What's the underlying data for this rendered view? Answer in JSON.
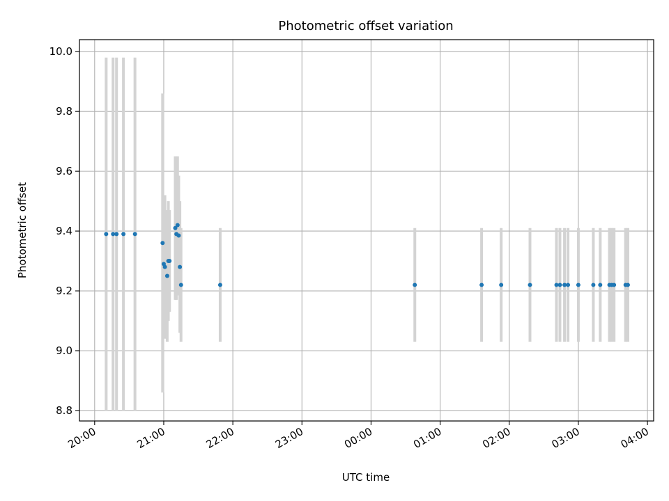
{
  "chart_data": {
    "type": "scatter",
    "title": "Photometric offset variation",
    "xlabel": "UTC time",
    "ylabel": "Photometric offset",
    "x_ticks": [
      "20:00",
      "21:00",
      "22:00",
      "23:00",
      "00:00",
      "01:00",
      "02:00",
      "03:00",
      "04:00"
    ],
    "y_ticks": [
      "8.8",
      "9.0",
      "9.2",
      "9.4",
      "9.6",
      "9.8",
      "10.0"
    ],
    "xlim_hours": [
      19.78,
      28.09
    ],
    "ylim": [
      8.765,
      10.04
    ],
    "grid": true,
    "colors": {
      "points": "#1f77b4",
      "error_bars": "#d3d3d3",
      "grid": "#b0b0b0"
    },
    "series": [
      {
        "points": [
          {
            "x": "20:10",
            "y": 9.39,
            "err": 0.59
          },
          {
            "x": "20:16",
            "y": 9.39,
            "err": 0.59
          },
          {
            "x": "20:19",
            "y": 9.39,
            "err": 0.59
          },
          {
            "x": "20:25",
            "y": 9.39,
            "err": 0.59
          },
          {
            "x": "20:35",
            "y": 9.39,
            "err": 0.59
          },
          {
            "x": "20:59",
            "y": 9.36,
            "err": 0.5
          },
          {
            "x": "21:00",
            "y": 9.29,
            "err": 0.23
          },
          {
            "x": "21:01",
            "y": 9.28,
            "err": 0.24
          },
          {
            "x": "21:03",
            "y": 9.25,
            "err": 0.22
          },
          {
            "x": "21:04",
            "y": 9.3,
            "err": 0.2
          },
          {
            "x": "21:05",
            "y": 9.3,
            "err": 0.17
          },
          {
            "x": "21:10",
            "y": 9.41,
            "err": 0.24
          },
          {
            "x": "21:11",
            "y": 9.39,
            "err": 0.22
          },
          {
            "x": "21:12",
            "y": 9.42,
            "err": 0.23
          },
          {
            "x": "21:13",
            "y": 9.385,
            "err": 0.2
          },
          {
            "x": "21:14",
            "y": 9.28,
            "err": 0.22
          },
          {
            "x": "21:15",
            "y": 9.22,
            "err": 0.19
          },
          {
            "x": "21:49",
            "y": 9.22,
            "err": 0.19
          },
          {
            "x": "00:38",
            "y": 9.22,
            "err": 0.19
          },
          {
            "x": "01:36",
            "y": 9.22,
            "err": 0.19
          },
          {
            "x": "01:53",
            "y": 9.22,
            "err": 0.19
          },
          {
            "x": "02:18",
            "y": 9.22,
            "err": 0.19
          },
          {
            "x": "02:41",
            "y": 9.22,
            "err": 0.19
          },
          {
            "x": "02:44",
            "y": 9.22,
            "err": 0.19
          },
          {
            "x": "02:48",
            "y": 9.22,
            "err": 0.19
          },
          {
            "x": "02:51",
            "y": 9.22,
            "err": 0.19
          },
          {
            "x": "03:00",
            "y": 9.22,
            "err": 0.19
          },
          {
            "x": "03:13",
            "y": 9.22,
            "err": 0.19
          },
          {
            "x": "03:19",
            "y": 9.22,
            "err": 0.19
          },
          {
            "x": "03:27",
            "y": 9.22,
            "err": 0.19
          },
          {
            "x": "03:29",
            "y": 9.22,
            "err": 0.19
          },
          {
            "x": "03:31",
            "y": 9.22,
            "err": 0.19
          },
          {
            "x": "03:41",
            "y": 9.22,
            "err": 0.19
          },
          {
            "x": "03:43",
            "y": 9.22,
            "err": 0.19
          }
        ]
      }
    ]
  }
}
